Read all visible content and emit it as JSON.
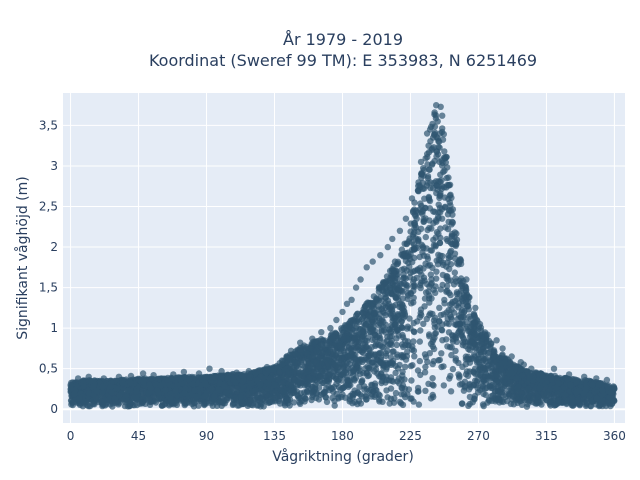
{
  "chart_data": {
    "type": "scatter",
    "title_lines": [
      "År 1979 - 2019",
      "Koordinat (Sweref 99 TM): E 353983, N 6251469"
    ],
    "xlabel": "Vågriktning (grader)",
    "ylabel": "Signifikant våghöjd (m)",
    "xlim": [
      -5,
      367
    ],
    "ylim": [
      -0.17,
      3.9
    ],
    "xticks": [
      0,
      45,
      90,
      135,
      180,
      225,
      270,
      315,
      360
    ],
    "xtick_labels": [
      "0",
      "45",
      "90",
      "135",
      "180",
      "225",
      "270",
      "315",
      "360"
    ],
    "yticks": [
      0,
      0.5,
      1,
      1.5,
      2,
      2.5,
      3,
      3.5
    ],
    "ytick_labels": [
      "0",
      "0,5",
      "1",
      "1,5",
      "2",
      "2,5",
      "3",
      "3,5"
    ],
    "grid": true,
    "colors": {
      "plot_bg": "#e5ecf6",
      "grid": "#ffffff",
      "marker": "#2f5670"
    },
    "series": [
      {
        "upper_envelope": [
          [
            0,
            0.35
          ],
          [
            10,
            0.38
          ],
          [
            20,
            0.37
          ],
          [
            30,
            0.38
          ],
          [
            45,
            0.4
          ],
          [
            60,
            0.4
          ],
          [
            75,
            0.42
          ],
          [
            90,
            0.42
          ],
          [
            105,
            0.45
          ],
          [
            120,
            0.47
          ],
          [
            135,
            0.55
          ],
          [
            145,
            0.7
          ],
          [
            155,
            0.82
          ],
          [
            165,
            0.88
          ],
          [
            175,
            0.97
          ],
          [
            185,
            1.1
          ],
          [
            195,
            1.3
          ],
          [
            205,
            1.55
          ],
          [
            215,
            1.85
          ],
          [
            222,
            2.1
          ],
          [
            228,
            2.6
          ],
          [
            233,
            3.1
          ],
          [
            238,
            3.5
          ],
          [
            242,
            3.72
          ],
          [
            246,
            3.6
          ],
          [
            250,
            3.0
          ],
          [
            255,
            2.3
          ],
          [
            260,
            1.65
          ],
          [
            265,
            1.3
          ],
          [
            270,
            1.1
          ],
          [
            280,
            0.8
          ],
          [
            290,
            0.62
          ],
          [
            300,
            0.5
          ],
          [
            315,
            0.45
          ],
          [
            330,
            0.4
          ],
          [
            345,
            0.37
          ],
          [
            360,
            0.3
          ]
        ],
        "points": [
          [
            242,
            3.75
          ],
          [
            245,
            3.73
          ],
          [
            246,
            3.62
          ],
          [
            241,
            3.66
          ],
          [
            243,
            3.55
          ],
          [
            238,
            3.45
          ],
          [
            240,
            3.35
          ],
          [
            244,
            3.3
          ],
          [
            236,
            3.4
          ],
          [
            237,
            3.25
          ],
          [
            248,
            3.1
          ],
          [
            239,
            3.2
          ],
          [
            232,
            3.05
          ],
          [
            234,
            2.95
          ],
          [
            249,
            2.85
          ],
          [
            226,
            2.6
          ],
          [
            230,
            2.7
          ],
          [
            251,
            2.55
          ],
          [
            222,
            2.35
          ],
          [
            228,
            2.4
          ],
          [
            253,
            2.3
          ],
          [
            218,
            2.2
          ],
          [
            213,
            2.1
          ],
          [
            255,
            2.05
          ],
          [
            210,
            2.0
          ],
          [
            205,
            1.9
          ],
          [
            258,
            1.85
          ],
          [
            200,
            1.82
          ],
          [
            196,
            1.75
          ],
          [
            192,
            1.6
          ],
          [
            262,
            1.6
          ],
          [
            189,
            1.5
          ],
          [
            186,
            1.35
          ],
          [
            264,
            1.38
          ],
          [
            183,
            1.3
          ],
          [
            180,
            1.2
          ],
          [
            268,
            1.25
          ],
          [
            176,
            1.1
          ],
          [
            172,
            1.0
          ],
          [
            271,
            1.05
          ],
          [
            166,
            0.95
          ],
          [
            160,
            0.87
          ],
          [
            276,
            0.92
          ],
          [
            282,
            0.85
          ],
          [
            152,
            0.82
          ],
          [
            286,
            0.75
          ],
          [
            146,
            0.72
          ],
          [
            292,
            0.65
          ],
          [
            140,
            0.6
          ],
          [
            298,
            0.58
          ],
          [
            300,
            0.55
          ],
          [
            305,
            0.5
          ],
          [
            130,
            0.52
          ],
          [
            125,
            0.48
          ],
          [
            118,
            0.47
          ],
          [
            110,
            0.45
          ],
          [
            100,
            0.47
          ],
          [
            92,
            0.5
          ],
          [
            85,
            0.44
          ],
          [
            75,
            0.46
          ],
          [
            68,
            0.43
          ],
          [
            55,
            0.42
          ],
          [
            48,
            0.44
          ],
          [
            40,
            0.41
          ],
          [
            32,
            0.4
          ],
          [
            22,
            0.38
          ],
          [
            12,
            0.4
          ],
          [
            5,
            0.38
          ],
          [
            0,
            0.3
          ],
          [
            320,
            0.5
          ],
          [
            330,
            0.43
          ],
          [
            340,
            0.4
          ],
          [
            348,
            0.38
          ],
          [
            355,
            0.36
          ],
          [
            360,
            0.25
          ]
        ]
      }
    ]
  }
}
